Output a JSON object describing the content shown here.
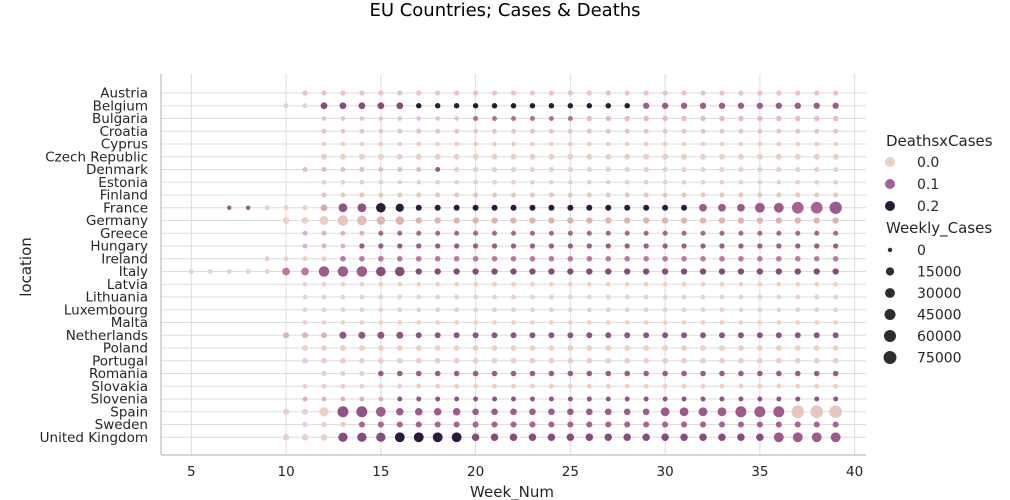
{
  "chart_data": {
    "type": "scatter",
    "title": "EU Countries; Cases & Deaths",
    "xlabel": "Week_Num",
    "ylabel": "location",
    "xlim": [
      3.4,
      40.6
    ],
    "xticks": [
      5,
      10,
      15,
      20,
      25,
      30,
      35,
      40
    ],
    "grid": true,
    "locations": [
      "Austria",
      "Belgium",
      "Bulgaria",
      "Croatia",
      "Cyprus",
      "Czech Republic",
      "Denmark",
      "Estonia",
      "Finland",
      "France",
      "Germany",
      "Greece",
      "Hungary",
      "Ireland",
      "Italy",
      "Latvia",
      "Lithuania",
      "Luxembourg",
      "Malta",
      "Netherlands",
      "Poland",
      "Portugal",
      "Romania",
      "Slovakia",
      "Slovenia",
      "Spain",
      "Sweden",
      "United Kingdom"
    ],
    "hue_legend": {
      "title": "DeathsxCases",
      "entries": [
        {
          "label": "0.0",
          "value": 0.0,
          "color": "#ebd0c8"
        },
        {
          "label": "0.1",
          "value": 0.1,
          "color": "#a86392"
        },
        {
          "label": "0.2",
          "value": 0.2,
          "color": "#2b1b3a"
        }
      ]
    },
    "size_legend": {
      "title": "Weekly_Cases",
      "entries": [
        {
          "label": "0",
          "value": 0
        },
        {
          "label": "15000",
          "value": 15000
        },
        {
          "label": "30000",
          "value": 30000
        },
        {
          "label": "45000",
          "value": 45000
        },
        {
          "label": "60000",
          "value": 60000
        },
        {
          "label": "75000",
          "value": 75000
        }
      ]
    },
    "points": [
      {
        "location": "Austria",
        "weeks": [
          11,
          39
        ],
        "d": 0.01,
        "cases": 600
      },
      {
        "location": "Belgium",
        "weeks": [
          10,
          11
        ],
        "d": 0.0,
        "cases": 300
      },
      {
        "location": "Belgium",
        "weeks": [
          12,
          16
        ],
        "d": 0.13,
        "cases": 6000
      },
      {
        "location": "Belgium",
        "weeks": [
          17,
          28
        ],
        "d": 0.22,
        "cases": 1200
      },
      {
        "location": "Belgium",
        "weeks": [
          29,
          39
        ],
        "d": 0.11,
        "cases": 4000
      },
      {
        "location": "Bulgaria",
        "weeks": [
          12,
          19
        ],
        "d": 0.01,
        "cases": 100
      },
      {
        "location": "Bulgaria",
        "weeks": [
          20,
          25
        ],
        "d": 0.09,
        "cases": 300
      },
      {
        "location": "Bulgaria",
        "weeks": [
          26,
          39
        ],
        "d": 0.02,
        "cases": 1000
      },
      {
        "location": "Croatia",
        "weeks": [
          12,
          39
        ],
        "d": 0.01,
        "cases": 300
      },
      {
        "location": "Cyprus",
        "weeks": [
          12,
          39
        ],
        "d": 0.0,
        "cases": 100
      },
      {
        "location": "Czech Republic",
        "weeks": [
          12,
          39
        ],
        "d": 0.0,
        "cases": 2500
      },
      {
        "location": "Denmark",
        "weeks": [
          11,
          17
        ],
        "d": 0.02,
        "cases": 500
      },
      {
        "location": "Denmark",
        "weeks": [
          18,
          18
        ],
        "d": 0.11,
        "cases": 300
      },
      {
        "location": "Denmark",
        "weeks": [
          19,
          39
        ],
        "d": 0.0,
        "cases": 900
      },
      {
        "location": "Estonia",
        "weeks": [
          12,
          39
        ],
        "d": 0.0,
        "cases": 100
      },
      {
        "location": "Finland",
        "weeks": [
          12,
          39
        ],
        "d": 0.01,
        "cases": 300
      },
      {
        "location": "France",
        "weeks": [
          7,
          8
        ],
        "d": 0.11,
        "cases": 10
      },
      {
        "location": "France",
        "weeks": [
          9,
          11
        ],
        "d": 0.0,
        "cases": 400
      },
      {
        "location": "France",
        "weeks": [
          12,
          12
        ],
        "d": 0.04,
        "cases": 6000
      },
      {
        "location": "France",
        "weeks": [
          13,
          14
        ],
        "d": 0.12,
        "cases": 20000
      },
      {
        "location": "France",
        "weeks": [
          15,
          15
        ],
        "d": 0.22,
        "cases": 28000
      },
      {
        "location": "France",
        "weeks": [
          16,
          16
        ],
        "d": 0.22,
        "cases": 15000
      },
      {
        "location": "France",
        "weeks": [
          17,
          31
        ],
        "d": 0.22,
        "cases": 2500
      },
      {
        "location": "France",
        "weeks": [
          32,
          34
        ],
        "d": 0.11,
        "cases": 12000
      },
      {
        "location": "France",
        "weeks": [
          35,
          36
        ],
        "d": 0.11,
        "cases": 30000
      },
      {
        "location": "France",
        "weeks": [
          37,
          38
        ],
        "d": 0.1,
        "cases": 55000
      },
      {
        "location": "France",
        "weeks": [
          39,
          39
        ],
        "d": 0.11,
        "cases": 65000
      },
      {
        "location": "Germany",
        "weeks": [
          10,
          11
        ],
        "d": 0.0,
        "cases": 6000
      },
      {
        "location": "Germany",
        "weeks": [
          12,
          12
        ],
        "d": 0.0,
        "cases": 22000
      },
      {
        "location": "Germany",
        "weeks": [
          13,
          13
        ],
        "d": 0.01,
        "cases": 38000
      },
      {
        "location": "Germany",
        "weeks": [
          14,
          14
        ],
        "d": 0.02,
        "cases": 30000
      },
      {
        "location": "Germany",
        "weeks": [
          15,
          16
        ],
        "d": 0.03,
        "cases": 18000
      },
      {
        "location": "Germany",
        "weeks": [
          17,
          39
        ],
        "d": 0.03,
        "cases": 4000
      },
      {
        "location": "Greece",
        "weeks": [
          11,
          14
        ],
        "d": 0.03,
        "cases": 200
      },
      {
        "location": "Greece",
        "weeks": [
          15,
          39
        ],
        "d": 0.1,
        "cases": 400
      },
      {
        "location": "Hungary",
        "weeks": [
          11,
          13
        ],
        "d": 0.03,
        "cases": 200
      },
      {
        "location": "Hungary",
        "weeks": [
          14,
          39
        ],
        "d": 0.11,
        "cases": 800
      },
      {
        "location": "Ireland",
        "weeks": [
          9,
          12
        ],
        "d": 0.0,
        "cases": 500
      },
      {
        "location": "Ireland",
        "weeks": [
          13,
          39
        ],
        "d": 0.08,
        "cases": 1500
      },
      {
        "location": "Italy",
        "weeks": [
          5,
          9
        ],
        "d": 0.0,
        "cases": 200
      },
      {
        "location": "Italy",
        "weeks": [
          10,
          11
        ],
        "d": 0.08,
        "cases": 12000
      },
      {
        "location": "Italy",
        "weeks": [
          12,
          14
        ],
        "d": 0.11,
        "cases": 38000
      },
      {
        "location": "Italy",
        "weeks": [
          15,
          16
        ],
        "d": 0.13,
        "cases": 28000
      },
      {
        "location": "Italy",
        "weeks": [
          17,
          39
        ],
        "d": 0.13,
        "cases": 4000
      },
      {
        "location": "Latvia",
        "weeks": [
          11,
          39
        ],
        "d": 0.0,
        "cases": 100
      },
      {
        "location": "Lithuania",
        "weeks": [
          11,
          39
        ],
        "d": 0.0,
        "cases": 100
      },
      {
        "location": "Luxembourg",
        "weeks": [
          11,
          39
        ],
        "d": 0.0,
        "cases": 200
      },
      {
        "location": "Malta",
        "weeks": [
          11,
          39
        ],
        "d": 0.0,
        "cases": 50
      },
      {
        "location": "Netherlands",
        "weeks": [
          10,
          12
        ],
        "d": 0.03,
        "cases": 3000
      },
      {
        "location": "Netherlands",
        "weeks": [
          13,
          16
        ],
        "d": 0.12,
        "cases": 7000
      },
      {
        "location": "Netherlands",
        "weeks": [
          17,
          39
        ],
        "d": 0.12,
        "cases": 2500
      },
      {
        "location": "Poland",
        "weeks": [
          11,
          39
        ],
        "d": 0.0,
        "cases": 2000
      },
      {
        "location": "Portugal",
        "weeks": [
          11,
          39
        ],
        "d": 0.0,
        "cases": 2000
      },
      {
        "location": "Romania",
        "weeks": [
          12,
          14
        ],
        "d": 0.0,
        "cases": 800
      },
      {
        "location": "Romania",
        "weeks": [
          15,
          39
        ],
        "d": 0.11,
        "cases": 1500
      },
      {
        "location": "Slovakia",
        "weeks": [
          11,
          39
        ],
        "d": 0.0,
        "cases": 300
      },
      {
        "location": "Slovenia",
        "weeks": [
          11,
          15
        ],
        "d": 0.03,
        "cases": 200
      },
      {
        "location": "Slovenia",
        "weeks": [
          16,
          39
        ],
        "d": 0.12,
        "cases": 300
      },
      {
        "location": "Spain",
        "weeks": [
          10,
          11
        ],
        "d": 0.0,
        "cases": 3000
      },
      {
        "location": "Spain",
        "weeks": [
          12,
          12
        ],
        "d": 0.0,
        "cases": 25000
      },
      {
        "location": "Spain",
        "weeks": [
          13,
          14
        ],
        "d": 0.12,
        "cases": 45000
      },
      {
        "location": "Spain",
        "weeks": [
          15,
          15
        ],
        "d": 0.11,
        "cases": 30000
      },
      {
        "location": "Spain",
        "weeks": [
          16,
          19
        ],
        "d": 0.11,
        "cases": 10000
      },
      {
        "location": "Spain",
        "weeks": [
          20,
          29
        ],
        "d": 0.11,
        "cases": 5000
      },
      {
        "location": "Spain",
        "weeks": [
          30,
          33
        ],
        "d": 0.11,
        "cases": 20000
      },
      {
        "location": "Spain",
        "weeks": [
          34,
          36
        ],
        "d": 0.11,
        "cases": 45000
      },
      {
        "location": "Spain",
        "weeks": [
          37,
          39
        ],
        "d": 0.01,
        "cases": 70000
      },
      {
        "location": "Sweden",
        "weeks": [
          11,
          13
        ],
        "d": 0.0,
        "cases": 1500
      },
      {
        "location": "Sweden",
        "weeks": [
          14,
          39
        ],
        "d": 0.1,
        "cases": 3000
      },
      {
        "location": "United Kingdom",
        "weeks": [
          10,
          12
        ],
        "d": 0.0,
        "cases": 5000
      },
      {
        "location": "United Kingdom",
        "weeks": [
          13,
          15
        ],
        "d": 0.13,
        "cases": 25000
      },
      {
        "location": "United Kingdom",
        "weeks": [
          16,
          19
        ],
        "d": 0.22,
        "cases": 30000
      },
      {
        "location": "United Kingdom",
        "weeks": [
          20,
          35
        ],
        "d": 0.13,
        "cases": 10000
      },
      {
        "location": "United Kingdom",
        "weeks": [
          36,
          39
        ],
        "d": 0.11,
        "cases": 30000
      }
    ]
  }
}
